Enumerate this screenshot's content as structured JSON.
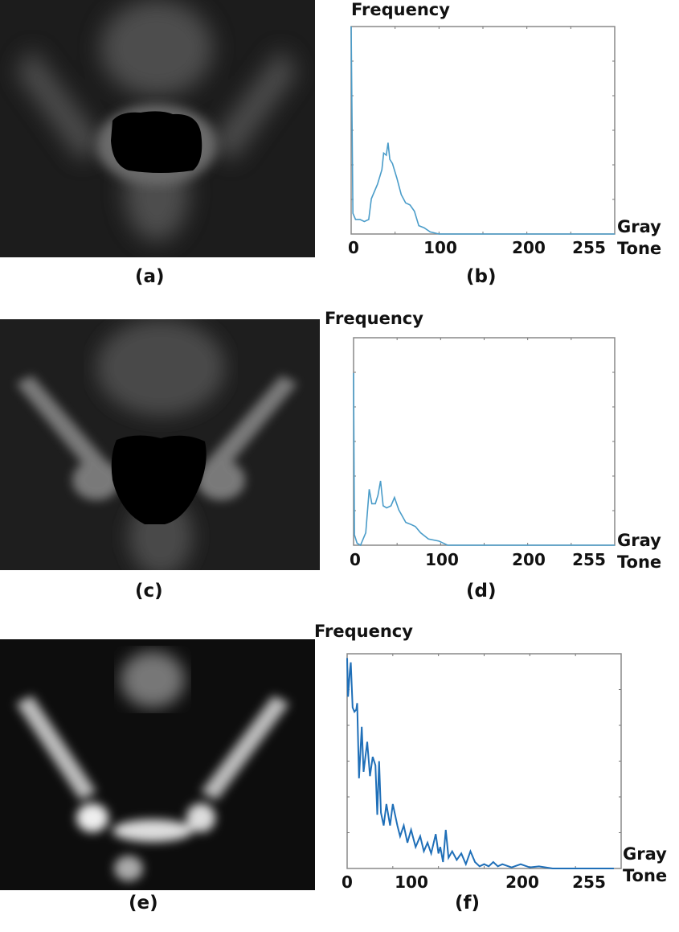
{
  "panels": [
    {
      "id": "a",
      "caption": "(a)",
      "type": "image"
    },
    {
      "id": "b",
      "caption": "(b)",
      "type": "chart",
      "chart_index": 0
    },
    {
      "id": "c",
      "caption": "(c)",
      "type": "image"
    },
    {
      "id": "d",
      "caption": "(d)",
      "type": "chart",
      "chart_index": 1
    },
    {
      "id": "e",
      "caption": "(e)",
      "type": "image"
    },
    {
      "id": "f",
      "caption": "(f)",
      "type": "chart",
      "chart_index": 2
    }
  ],
  "chart_data": [
    {
      "type": "line",
      "ylabel": "Frequency",
      "xlabel_line1": "Gray",
      "xlabel_line2": "Tone",
      "xticks": [
        "0",
        "100",
        "200",
        "255"
      ],
      "xlim": [
        0,
        300
      ],
      "ylim": [
        0,
        1
      ],
      "grid": false,
      "color": "#4a9cc9",
      "x": [
        0,
        2,
        5,
        10,
        15,
        20,
        23,
        30,
        35,
        37,
        40,
        42,
        44,
        47,
        52,
        57,
        62,
        67,
        72,
        77,
        83,
        90,
        100,
        300
      ],
      "y": [
        1.0,
        0.1,
        0.07,
        0.07,
        0.06,
        0.07,
        0.17,
        0.24,
        0.31,
        0.39,
        0.38,
        0.44,
        0.36,
        0.34,
        0.27,
        0.19,
        0.15,
        0.14,
        0.11,
        0.04,
        0.03,
        0.01,
        0,
        0
      ]
    },
    {
      "type": "line",
      "ylabel": "Frequency",
      "xlabel_line1": "Gray",
      "xlabel_line2": "Tone",
      "xticks": [
        "0",
        "100",
        "200",
        "255"
      ],
      "xlim": [
        0,
        300
      ],
      "ylim": [
        0,
        1
      ],
      "grid": false,
      "color": "#4a9cc9",
      "x": [
        0,
        1,
        4,
        8,
        14,
        18,
        21,
        25,
        28,
        31,
        34,
        38,
        43,
        47,
        52,
        60,
        66,
        71,
        77,
        86,
        98,
        108,
        300
      ],
      "y": [
        0.83,
        0.05,
        0.01,
        0,
        0.06,
        0.27,
        0.2,
        0.2,
        0.24,
        0.31,
        0.19,
        0.18,
        0.19,
        0.23,
        0.17,
        0.11,
        0.1,
        0.09,
        0.06,
        0.03,
        0.02,
        0,
        0
      ]
    },
    {
      "type": "line",
      "ylabel": "Frequency",
      "xlabel_line1": "Gray",
      "xlabel_line2": "Tone",
      "xticks": [
        "0",
        "100",
        "200",
        "255"
      ],
      "xlim": [
        0,
        300
      ],
      "ylim": [
        0,
        1
      ],
      "grid": false,
      "color": "#1f6fb8",
      "x": [
        0,
        1,
        3,
        4,
        6,
        8,
        10,
        11,
        13,
        16,
        18,
        22,
        25,
        28,
        31,
        33,
        35,
        37,
        40,
        43,
        47,
        50,
        55,
        58,
        62,
        66,
        70,
        75,
        80,
        84,
        88,
        92,
        97,
        100,
        102,
        105,
        108,
        111,
        115,
        120,
        125,
        130,
        135,
        140,
        145,
        150,
        155,
        160,
        165,
        170,
        180,
        190,
        200,
        210,
        225,
        292
      ],
      "y": [
        0.98,
        0.8,
        0.92,
        0.96,
        0.75,
        0.73,
        0.74,
        0.77,
        0.42,
        0.66,
        0.45,
        0.59,
        0.43,
        0.52,
        0.48,
        0.25,
        0.5,
        0.26,
        0.2,
        0.3,
        0.2,
        0.3,
        0.2,
        0.15,
        0.2,
        0.12,
        0.18,
        0.1,
        0.15,
        0.08,
        0.12,
        0.07,
        0.16,
        0.07,
        0.1,
        0.03,
        0.18,
        0.05,
        0.08,
        0.04,
        0.07,
        0.02,
        0.08,
        0.03,
        0.01,
        0.02,
        0.01,
        0.03,
        0.01,
        0.02,
        0.005,
        0.02,
        0.005,
        0.01,
        0,
        0
      ]
    }
  ]
}
